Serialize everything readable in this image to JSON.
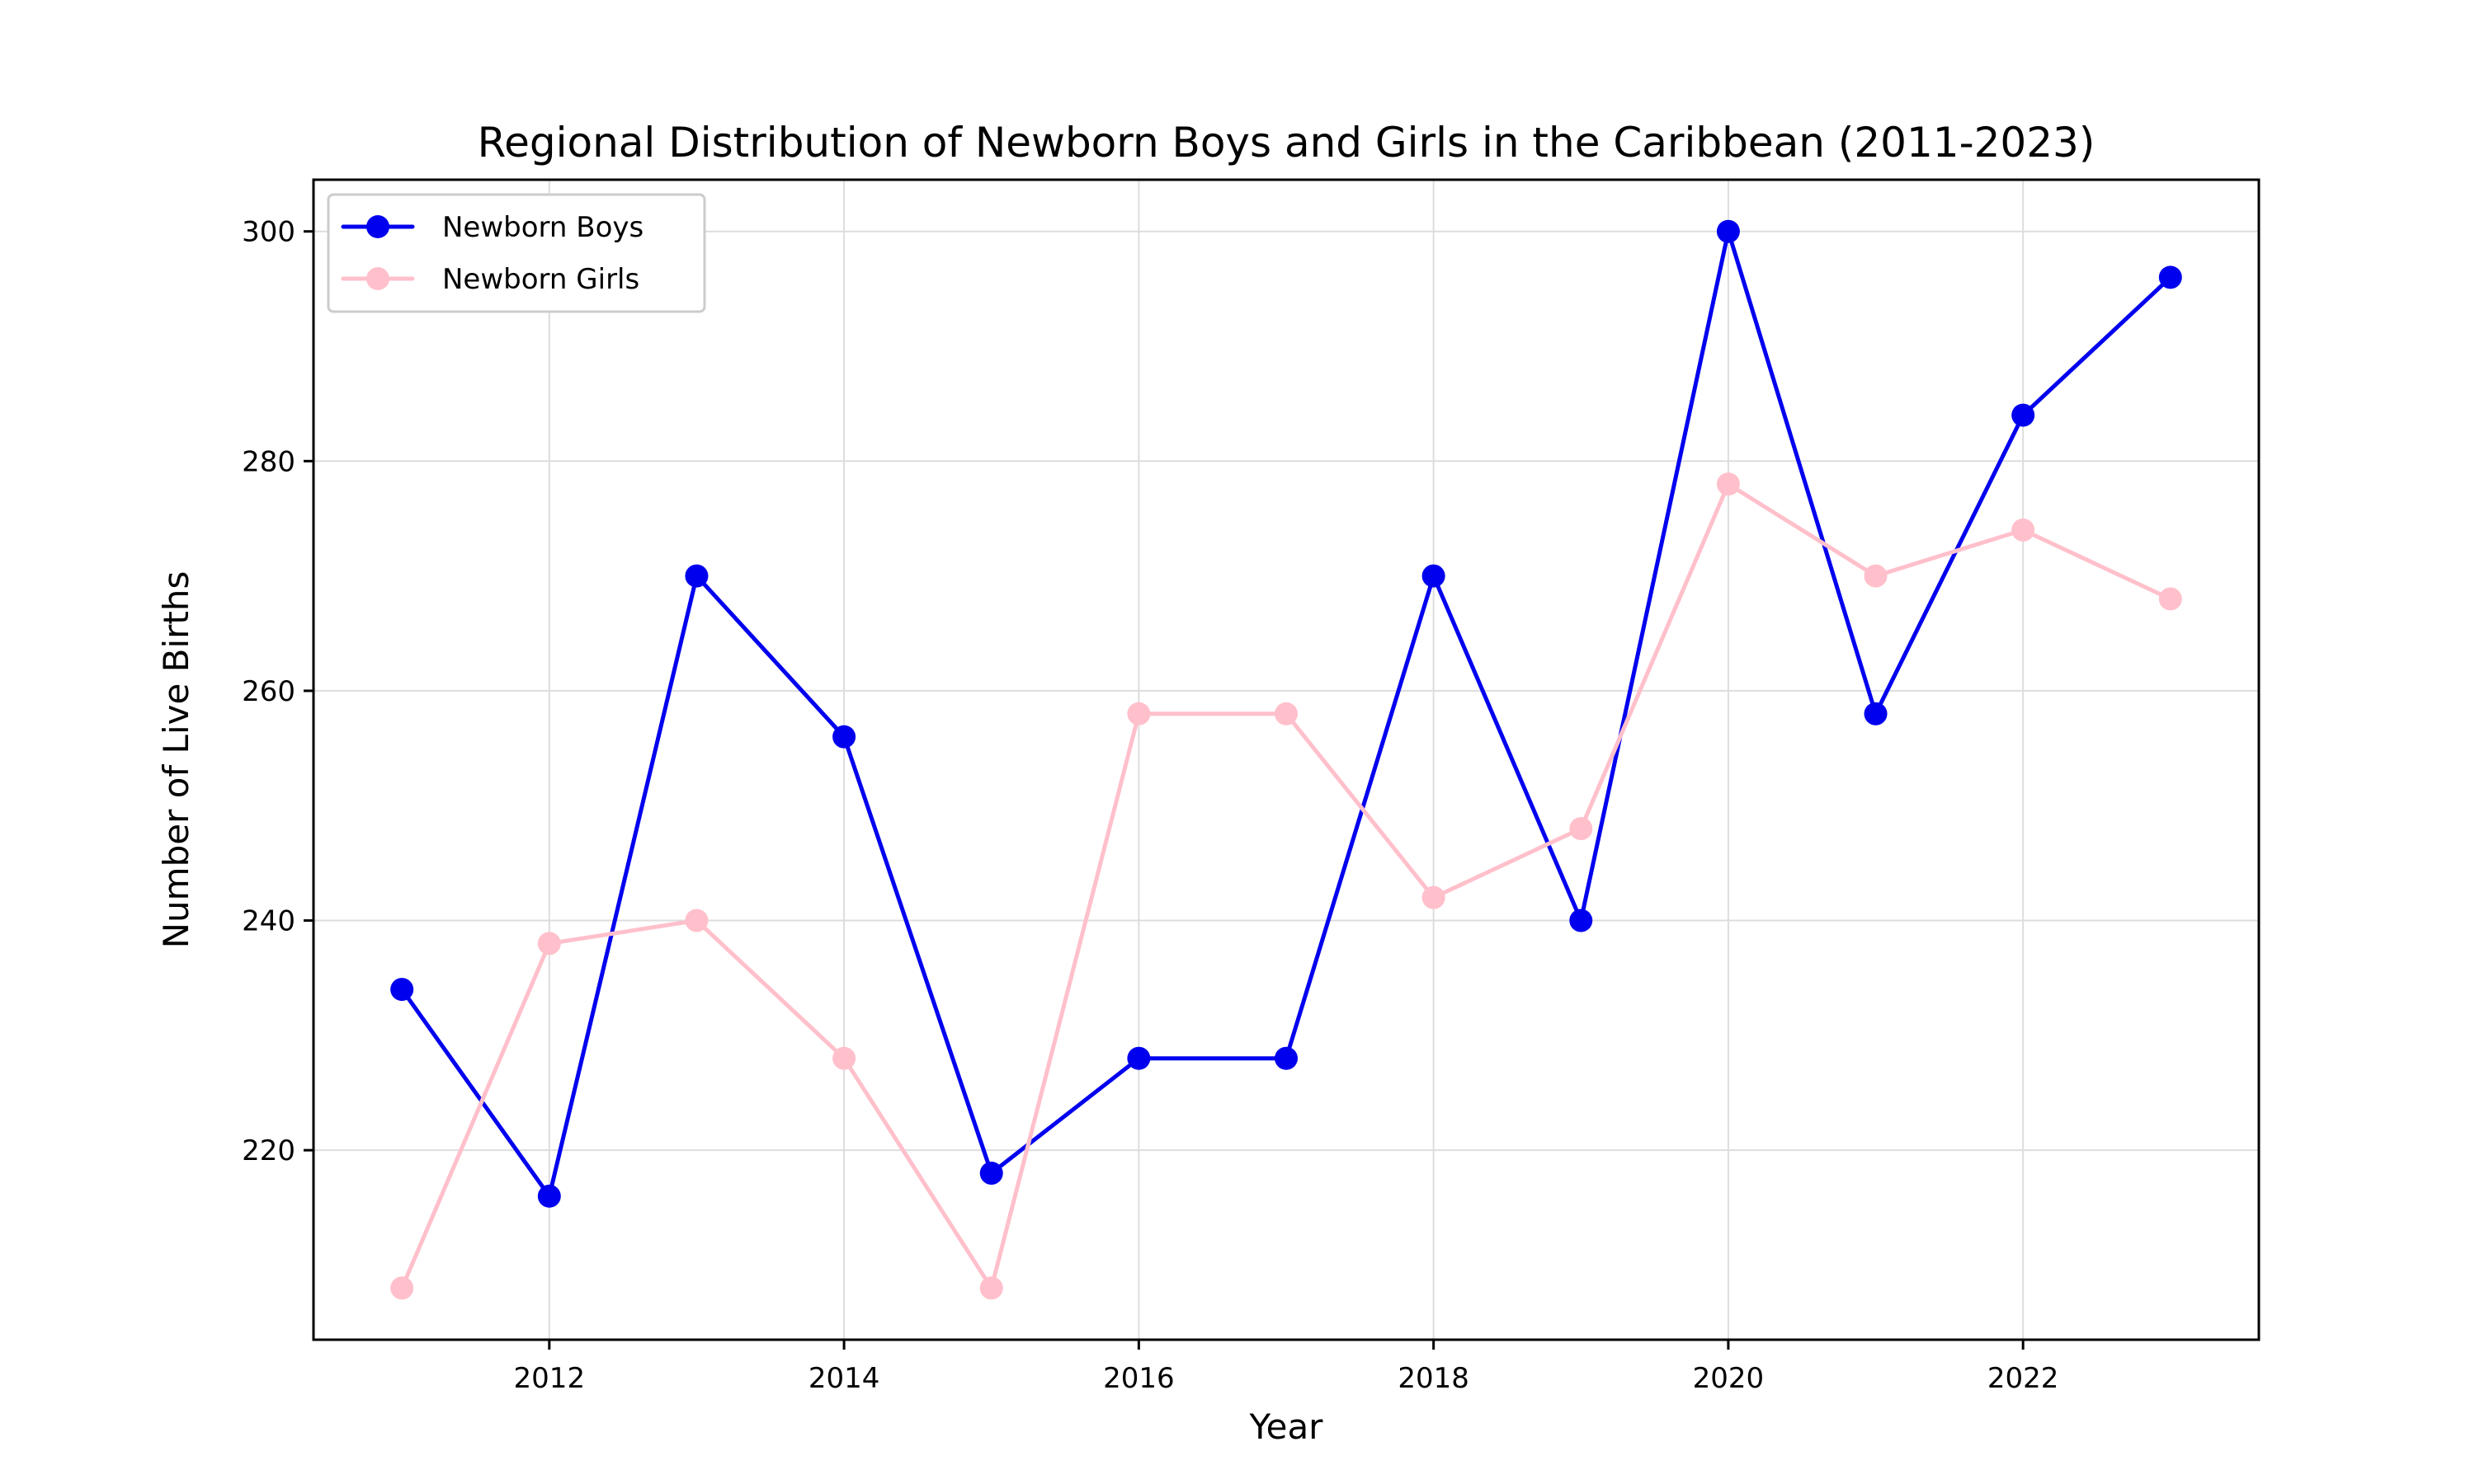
{
  "chart_data": {
    "type": "line",
    "title": "Regional Distribution of Newborn Boys and Girls in the Caribbean (2011-2023)",
    "xlabel": "Year",
    "ylabel": "Number of Live Births",
    "x": [
      2011,
      2012,
      2013,
      2014,
      2015,
      2016,
      2017,
      2018,
      2019,
      2020,
      2021,
      2022,
      2023
    ],
    "xlim": [
      2010.4,
      2023.6
    ],
    "ylim": [
      203.5,
      304.5
    ],
    "xticks": [
      2012,
      2014,
      2016,
      2018,
      2020,
      2022
    ],
    "yticks": [
      220,
      240,
      260,
      280,
      300
    ],
    "grid": true,
    "legend_position": "top-left",
    "series": [
      {
        "name": "Newborn Boys",
        "color": "#0000ee",
        "marker": "circle",
        "values": [
          234,
          216,
          270,
          256,
          218,
          228,
          228,
          270,
          240,
          300,
          258,
          284,
          296
        ]
      },
      {
        "name": "Newborn Girls",
        "color": "#ffc0cb",
        "marker": "circle",
        "values": [
          208,
          238,
          240,
          228,
          208,
          258,
          258,
          242,
          248,
          278,
          270,
          274,
          268
        ]
      }
    ]
  }
}
